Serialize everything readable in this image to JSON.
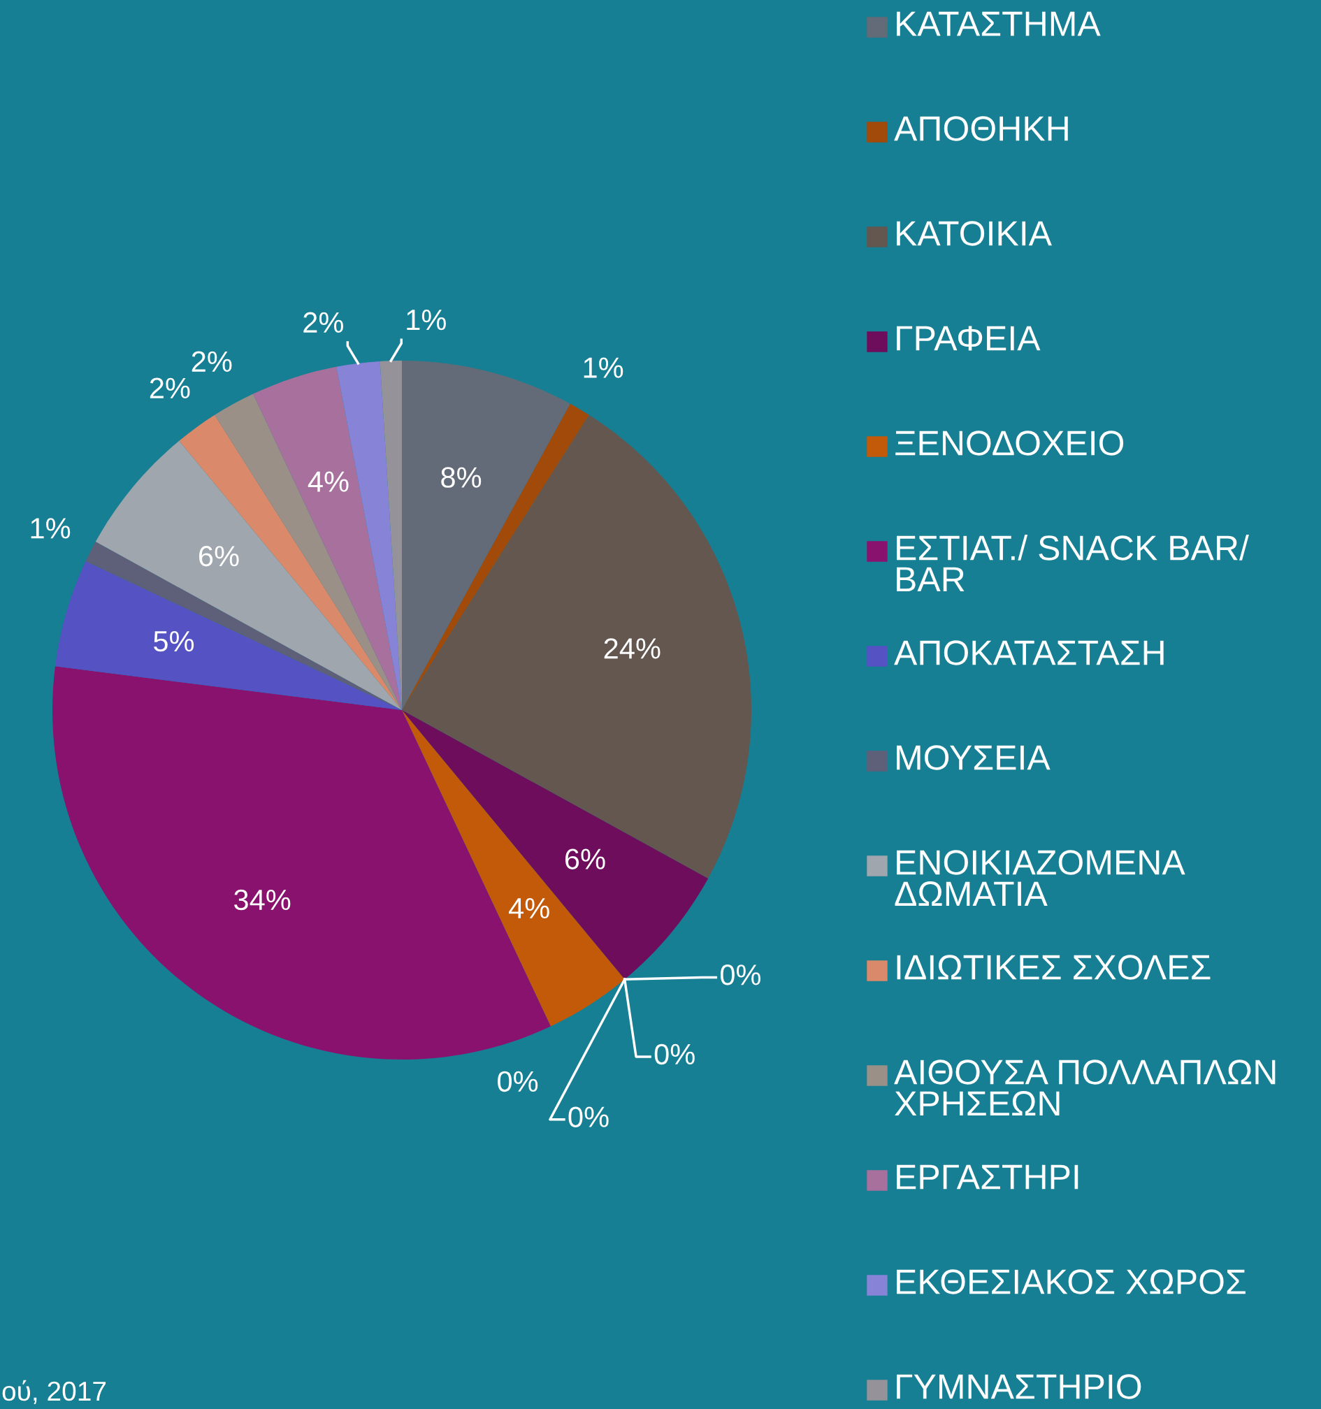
{
  "chart_data": {
    "type": "pie",
    "categories": [
      "ΚΑΤΑΣΤΗΜΑ",
      "ΑΠΟΘΗΚΗ",
      "ΚΑΤΟΙΚΙΑ",
      "ΓΡΑΦΕΙΑ",
      null,
      null,
      null,
      "ΞΕΝΟΔΟΧΕΙΟ",
      null,
      "ΕΣΤΙΑΤ./ SNACK BAR/ BAR",
      "ΑΠΟΚΑΤΑΣΤΑΣΗ",
      "ΜΟΥΣΕΙΑ",
      "ΕΝΟΙΚΙΑΖΟΜΕΝΑ ΔΩΜΑΤΙΑ",
      "ΙΔΙΩΤΙΚΕΣ ΣΧΟΛΕΣ",
      "ΑΙΘΟΥΣΑ ΠΟΛΛΑΠΛΩΝ ΧΡΗΣΕΩΝ",
      "ΕΡΓΑΣΤΗΡΙ",
      "ΕΚΘΕΣΙΑΚΟΣ ΧΩΡΟΣ",
      "ΓΥΜΝΑΣΤΗΡΙΟ"
    ],
    "values": [
      8,
      1,
      24,
      6,
      0,
      0,
      0,
      4,
      0,
      34,
      5,
      1,
      6,
      2,
      2,
      4,
      2,
      1
    ],
    "value_labels": [
      "8%",
      "1%",
      "24%",
      "6%",
      "0%",
      "0%",
      "0%",
      "4%",
      "0%",
      "34%",
      "5%",
      "1%",
      "6%",
      "2%",
      "2%",
      "4%",
      "2%",
      "1%"
    ],
    "colors": [
      "#646b78",
      "#a24a0a",
      "#635750",
      "#6e0d5c",
      "#c0c0c0",
      "#c0c0c0",
      "#c0c0c0",
      "#c35a0a",
      "#c0c0c0",
      "#8a126f",
      "#5552c4",
      "#5e5f78",
      "#a0a6ae",
      "#da8a6a",
      "#9a9088",
      "#a8709c",
      "#8784d8",
      "#96929a"
    ],
    "legend": "right",
    "annotations": [
      "ού, 2017"
    ]
  }
}
